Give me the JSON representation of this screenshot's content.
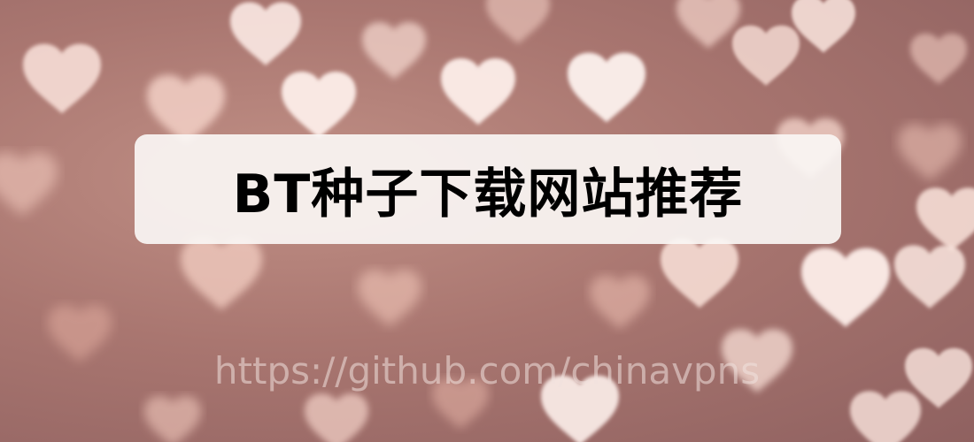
{
  "image": {
    "title": "BT种子下载网站推荐",
    "watermark": "https://github.com/chinavpns"
  },
  "colors": {
    "background": "#a97670",
    "heart_light": "#fbe9e4",
    "heart_mid": "#f3c9bd",
    "card": "#faf6f4",
    "title": "#000000",
    "watermark": "#f0e1de"
  }
}
